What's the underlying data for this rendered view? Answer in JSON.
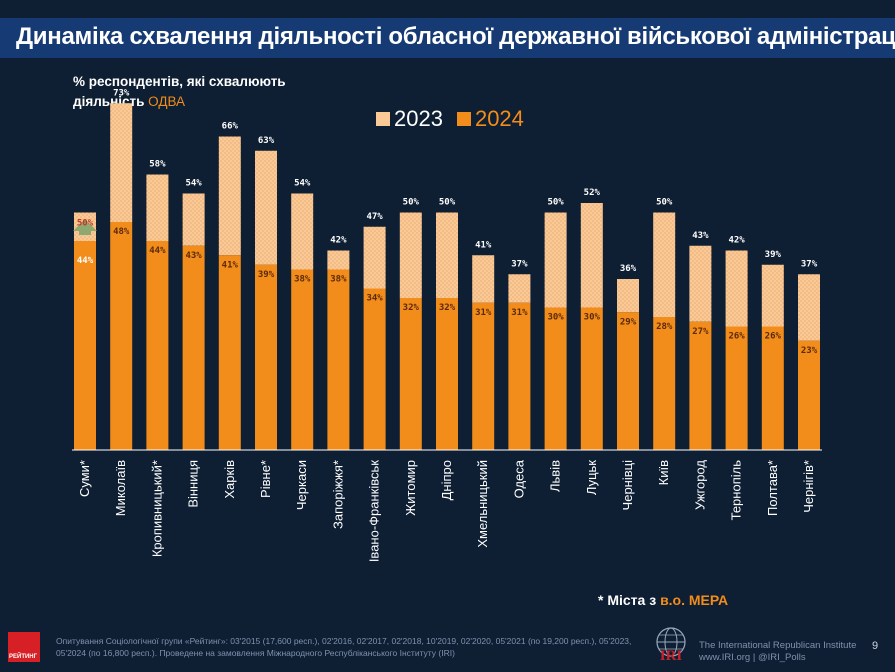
{
  "title": "Динаміка схвалення діяльності обласної державної військової адміністрації",
  "ylabel_main": "% респондентів, які схвалюють",
  "ylabel_line2": "діяльність ",
  "ylabel_accent": "ОДВА",
  "legend": {
    "y2023": "2023",
    "y2024": "2024"
  },
  "note_prefix": "* Міста з ",
  "note_accent": "в.о. МЕРА",
  "source": "Опитування Соціологічної групи «Рейтинг»: 03'2015 (17,600 респ.), 02'2016, 02'2017, 02'2018, 10'2019, 02'2020, 05'2021 (по 19,200 респ.), 05'2023, 05'2024 (по 16,800 респ.). Проведене на замовлення Міжнародного Республіканського Інституту (IRI)",
  "logo_text": "РЕЙТИНГ",
  "iri_name": "The International Republican Institute",
  "iri_links": "www.IRI.org | @IRI_Polls",
  "iri_mark": "IRI",
  "page_number": "9",
  "colors": {
    "bar_2023": "#fbc996",
    "bar_2024": "#f28c1a",
    "arrow": "#8fa86f",
    "bg": "#0e1e33"
  },
  "chart_data": {
    "type": "bar",
    "title": "Динаміка схвалення діяльності обласної державної військової адміністрації",
    "ylabel": "% респондентів, які схвалюють діяльність ОДВА",
    "xlabel": "",
    "ylim": [
      0,
      80
    ],
    "categories": [
      "Суми*",
      "Миколаїв",
      "Кропивницький*",
      "Вінниця",
      "Харків",
      "Рівне*",
      "Черкаси",
      "Запоріжжя*",
      "Івано-Франківськ",
      "Житомир",
      "Дніпро",
      "Хмельницький",
      "Одеса",
      "Львів",
      "Луцьк",
      "Чернівці",
      "Київ",
      "Ужгород",
      "Тернопіль",
      "Полтава*",
      "Чернігів*"
    ],
    "series": [
      {
        "name": "2023",
        "values": [
          50,
          73,
          58,
          54,
          66,
          63,
          54,
          42,
          47,
          50,
          50,
          41,
          37,
          50,
          52,
          36,
          50,
          43,
          42,
          39,
          37
        ]
      },
      {
        "name": "2024",
        "values": [
          44,
          48,
          44,
          43,
          41,
          39,
          38,
          38,
          34,
          32,
          32,
          31,
          31,
          30,
          30,
          29,
          28,
          27,
          26,
          26,
          23
        ]
      }
    ],
    "labels_2023": [
      "50%",
      "73%",
      "58%",
      "54%",
      "66%",
      "63%",
      "54%",
      "42%",
      "47%",
      "50%",
      "50%",
      "41%",
      "37%",
      "50%",
      "52%",
      "36%",
      "50%",
      "43%",
      "42%",
      "39%",
      "37%"
    ],
    "labels_2024": [
      "44%",
      "48%",
      "44%",
      "43%",
      "41%",
      "39%",
      "38%",
      "38%",
      "34%",
      "32%",
      "32%",
      "31%",
      "31%",
      "30%",
      "30%",
      "29%",
      "28%",
      "27%",
      "26%",
      "26%",
      "23%"
    ],
    "increase_marker": "Суми*"
  }
}
